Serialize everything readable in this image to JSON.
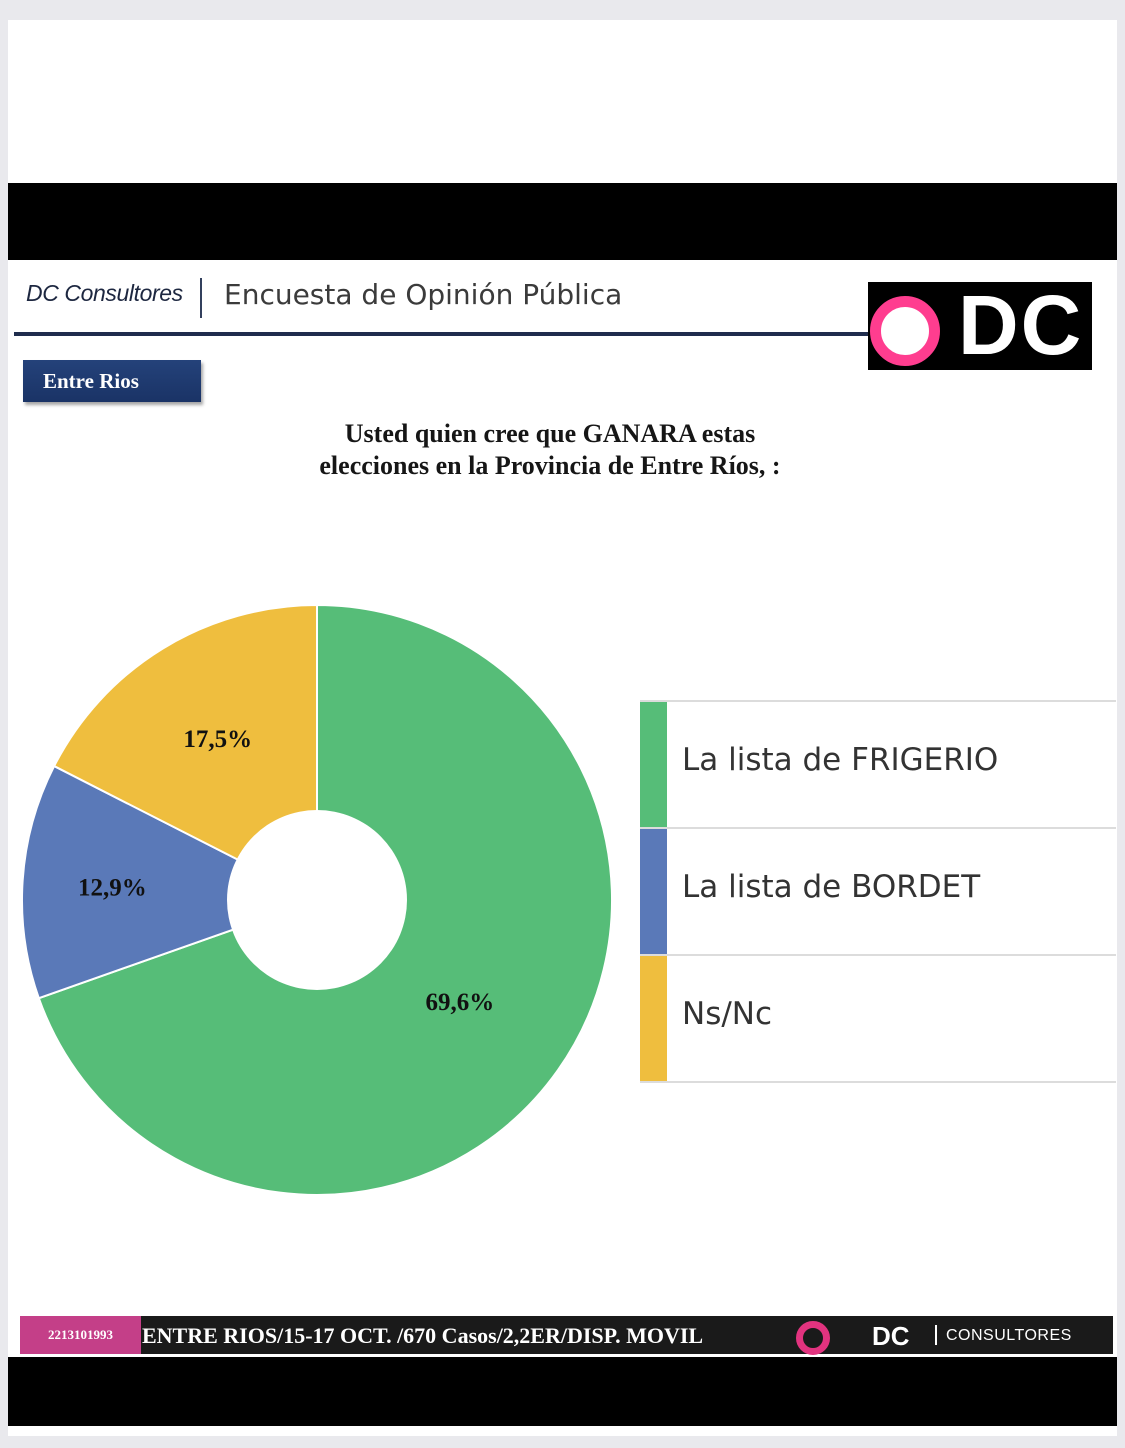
{
  "header": {
    "brand": "DC Consultores",
    "survey_title": "Encuesta de Opinión Pública",
    "logo_text": "DC"
  },
  "region_tag": "Entre Rios",
  "question": {
    "line1": "Usted quien cree que GANARA estas",
    "line2": "elecciones en la Provincia de Entre Ríos, :"
  },
  "chart_data": {
    "type": "pie",
    "donut": true,
    "categories": [
      "La lista de FRIGERIO",
      "La lista de BORDET",
      "Ns/Nc"
    ],
    "values": [
      69.6,
      12.9,
      17.5
    ],
    "value_labels": [
      "69,6%",
      "12,9%",
      "17,5%"
    ],
    "colors": [
      "#56bd78",
      "#5a79b8",
      "#efbe3e"
    ],
    "legend_position": "right",
    "title": "Usted quien cree que GANARA estas elecciones en la Provincia de Entre Ríos, :"
  },
  "footer": {
    "phone": "2213101993",
    "info": "ENTRE RIOS/15-17 OCT. /670 Casos/2,2ER/DISP. MOVIL",
    "logo_dc": "DC",
    "logo_consultores": "CONSULTORES"
  },
  "colors": {
    "navy": "#1f2c4d",
    "pink": "#ff3d8f",
    "region_tag_bg": "#1f3a70"
  }
}
